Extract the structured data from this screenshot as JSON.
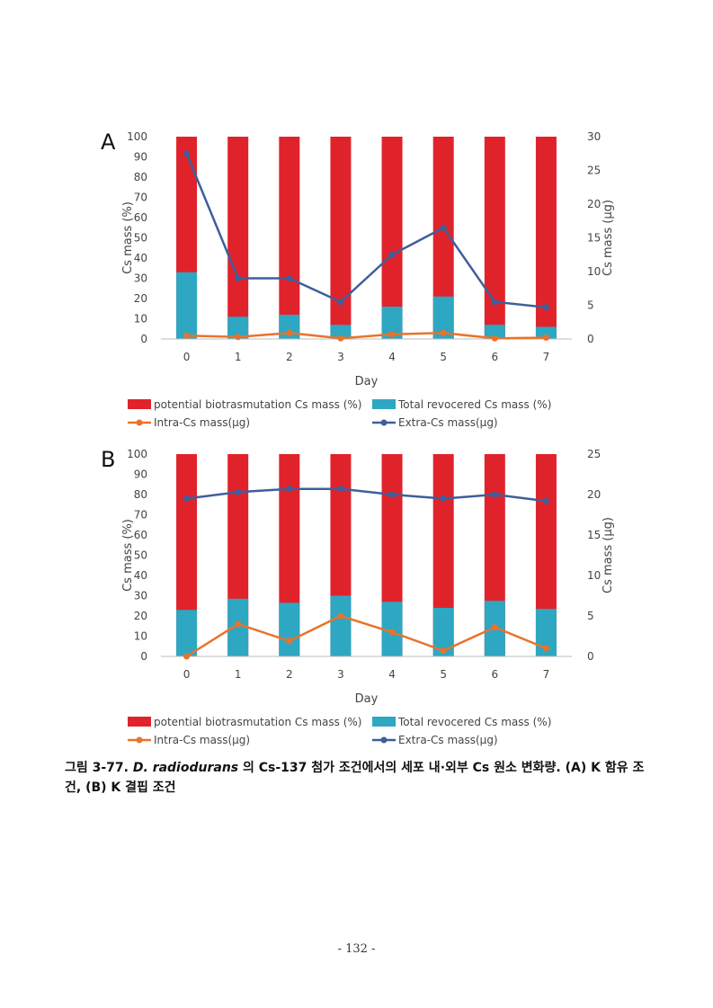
{
  "chart_data": [
    {
      "type": "bar",
      "panel_label": "A",
      "xlabel": "Day",
      "ylabel": "Cs mass (%)",
      "y2label": "Cs mass (μg)",
      "categories": [
        "0",
        "1",
        "2",
        "3",
        "4",
        "5",
        "6",
        "7"
      ],
      "ylim": [
        0,
        100
      ],
      "yticks": [
        "0",
        "10",
        "20",
        "30",
        "40",
        "50",
        "60",
        "70",
        "80",
        "90",
        "100"
      ],
      "y2lim": [
        0,
        30
      ],
      "y2ticks": [
        "0",
        "5",
        "10",
        "15",
        "20",
        "25",
        "30"
      ],
      "bar_series": [
        {
          "name": "potential biotrasmutation Cs mass (%)",
          "color": "#e0232b",
          "values": [
            100,
            100,
            100,
            100,
            100,
            100,
            100,
            100
          ]
        },
        {
          "name": "Total revocered Cs mass (%)",
          "color": "#2ea7c2",
          "values": [
            33,
            11,
            12,
            7,
            16,
            21,
            7,
            6
          ]
        }
      ],
      "line_series": [
        {
          "name": "Intra-Cs mass(μg)",
          "color": "#e8732c",
          "values": [
            0.5,
            0.3,
            0.9,
            0.1,
            0.7,
            0.9,
            0.1,
            0.2
          ]
        },
        {
          "name": "Extra-Cs mass(μg)",
          "color": "#3f5e9c",
          "values": [
            27.5,
            9,
            9,
            5.5,
            12.5,
            16.5,
            5.5,
            4.7
          ]
        }
      ],
      "legend": "bottom"
    },
    {
      "type": "bar",
      "panel_label": "B",
      "xlabel": "Day",
      "ylabel": "Cs mass (%)",
      "y2label": "Cs mass (μg)",
      "categories": [
        "0",
        "1",
        "2",
        "3",
        "4",
        "5",
        "6",
        "7"
      ],
      "ylim": [
        0,
        100
      ],
      "yticks": [
        "0",
        "10",
        "20",
        "30",
        "40",
        "50",
        "60",
        "70",
        "80",
        "90",
        "100"
      ],
      "y2lim": [
        0,
        25
      ],
      "y2ticks": [
        "0",
        "5",
        "10",
        "15",
        "20",
        "25"
      ],
      "bar_series": [
        {
          "name": "potential biotrasmutation Cs mass (%)",
          "color": "#e0232b",
          "values": [
            100,
            100,
            100,
            100,
            100,
            100,
            100,
            100
          ]
        },
        {
          "name": "Total revocered Cs mass (%)",
          "color": "#2ea7c2",
          "values": [
            23,
            28.5,
            26.5,
            30,
            27,
            24,
            27.5,
            23.5
          ]
        }
      ],
      "line_series": [
        {
          "name": "Intra-Cs mass(μg)",
          "color": "#e8732c",
          "values": [
            0,
            4,
            1.9,
            5,
            3,
            0.7,
            3.6,
            1
          ]
        },
        {
          "name": "Extra-Cs mass(μg)",
          "color": "#3f5e9c",
          "values": [
            19.5,
            20.3,
            20.7,
            20.7,
            20,
            19.5,
            20,
            19.2
          ]
        }
      ],
      "legend": "bottom"
    }
  ],
  "caption": {
    "prefix": "그림 3-77.",
    "species": "D. radiodurans",
    "rest": "의 Cs-137 첨가 조건에서의 세포 내·외부 Cs 원소 변화량. (A) K 함유 조건, (B) K 결핍 조건"
  },
  "page_number": "- 132 -"
}
